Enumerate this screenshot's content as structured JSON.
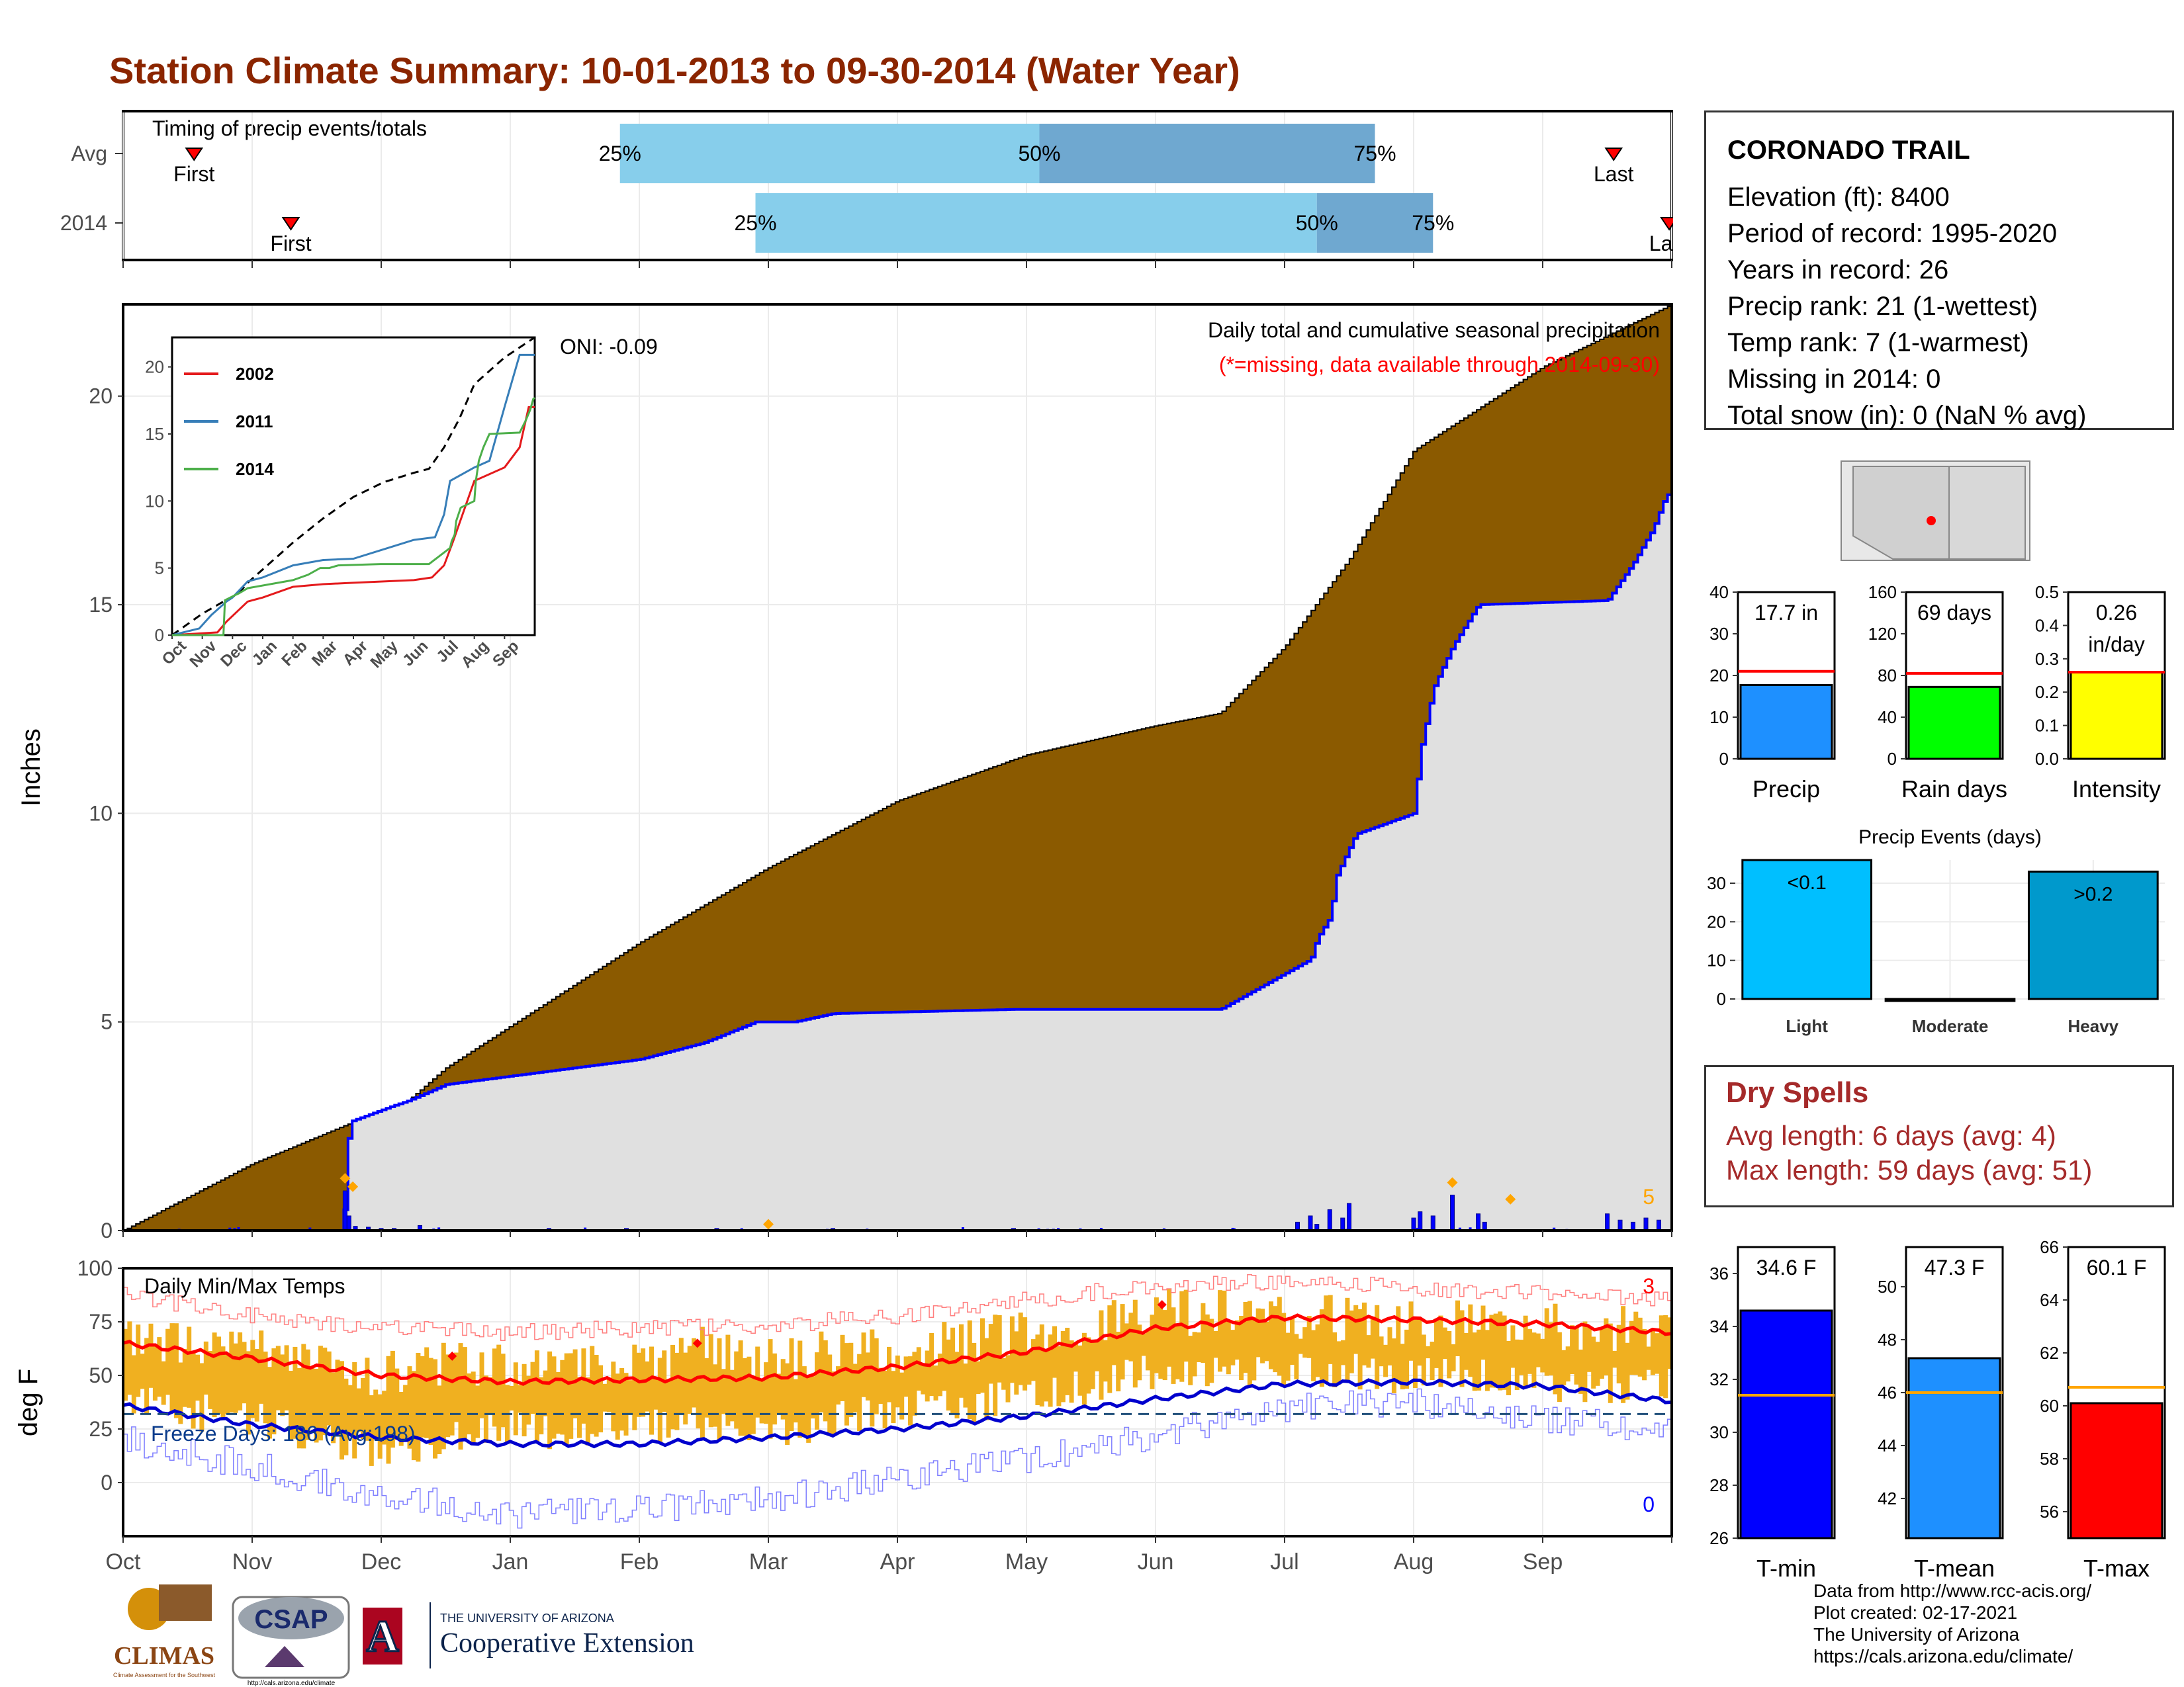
{
  "title": "Station Climate Summary: 10-01-2013 to 09-30-2014 (Water Year)",
  "timing_panel": {
    "label": "Timing of precip events/totals",
    "rows": [
      {
        "name": "Avg",
        "first_label": "First",
        "last_label": "Last",
        "p25_label": "25%",
        "p50_label": "50%",
        "p75_label": "75%",
        "first_month": 0.55,
        "p25_month": 3.85,
        "p50_month": 7.1,
        "p75_month": 9.7,
        "last_month": 11.55
      },
      {
        "name": "2014",
        "first_label": "First",
        "last_label": "Last",
        "p25_label": "25%",
        "p50_label": "50%",
        "p75_label": "75%",
        "first_month": 1.3,
        "p25_month": 4.9,
        "p50_month": 9.25,
        "p75_month": 10.15,
        "last_month": 11.98
      }
    ]
  },
  "station_info": {
    "name": "CORONADO TRAIL",
    "lines": [
      "Elevation (ft): 8400",
      "Period of record: 1995-2020",
      "Years in record: 26",
      "Precip rank: 21 (1-wettest)",
      "Temp rank: 7 (1-warmest)",
      "Missing in 2014: 0",
      "Total snow (in): 0 (NaN % avg)"
    ]
  },
  "dry_spells": {
    "title": "Dry Spells",
    "avg_line": "Avg length: 6 days (avg: 4)",
    "max_line": "Max length: 59 days (avg: 51)"
  },
  "footer": {
    "lines": [
      "Data from http://www.rcc-acis.org/",
      "Plot created: 02-17-2021",
      "The University of Arizona",
      "https://cals.arizona.edu/climate/"
    ]
  },
  "logos": {
    "climas": "CLIMAS",
    "climas_sub": "Climate Assessment for the Southwest",
    "csap": "CSAP",
    "csap_url": "http://cals.arizona.edu/climate",
    "ua_letter": "A",
    "ua_small": "THE UNIVERSITY OF ARIZONA",
    "ua_big": "Cooperative Extension"
  },
  "colors": {
    "title": "#8b2500",
    "avg_cum": "#8b5a00",
    "obs_area": "#e0e0e0",
    "obs_line": "#0000ff",
    "iqr_light": "#87ceeb",
    "iqr_dark": "#6fa8d0",
    "temp_range": "#f0b020",
    "tmax_avg": "#ff0000",
    "tmin_avg": "#0000cd",
    "dry": "#a52a2a"
  },
  "chart_data": [
    {
      "id": "main-precip",
      "type": "area",
      "ylabel": "Inches",
      "annotation_oni": "ONI: -0.09",
      "subtitle": "Daily total and cumulative seasonal precipitation",
      "missing_note": "(*=missing, data available through 2014-09-30)",
      "count_label": "5",
      "ylim": [
        0,
        22.2
      ],
      "yticks": [
        0,
        5,
        10,
        15,
        20
      ],
      "x_months": [
        "Oct",
        "Nov",
        "Dec",
        "Jan",
        "Feb",
        "Mar",
        "Apr",
        "May",
        "Jun",
        "Jul",
        "Aug",
        "Sep"
      ],
      "avg_cumulative": {
        "x_month": [
          0,
          1,
          1.7,
          2.2,
          2.5,
          3,
          4,
          5,
          6,
          7,
          8,
          8.5,
          9,
          9.5,
          10,
          11,
          12
        ],
        "y": [
          0,
          1.6,
          2.5,
          3.1,
          3.9,
          4.9,
          6.9,
          8.7,
          10.3,
          11.4,
          12.1,
          12.4,
          14.0,
          16.1,
          18.7,
          20.7,
          22.2
        ]
      },
      "observed_cumulative": {
        "x_month": [
          0,
          1.7,
          1.75,
          2.1,
          2.2,
          2.5,
          4,
          4.5,
          4.9,
          5.2,
          5.5,
          6.9,
          7.2,
          8,
          8.5,
          9.2,
          9.25,
          9.35,
          9.4,
          9.55,
          10.0,
          10.05,
          10.15,
          10.3,
          10.5,
          11.5,
          11.7,
          11.85,
          11.95,
          12
        ],
        "y": [
          0,
          0,
          2.6,
          3.0,
          3.1,
          3.5,
          4.1,
          4.5,
          5.0,
          5.0,
          5.2,
          5.3,
          5.3,
          5.3,
          5.3,
          6.5,
          7.0,
          7.5,
          8.5,
          9.5,
          10.0,
          11.5,
          13.0,
          14.0,
          15.0,
          15.1,
          16.0,
          16.8,
          17.6,
          17.7
        ]
      },
      "daily_bars": {
        "x_month": [
          1.72,
          1.75,
          1.8,
          1.9,
          2.0,
          2.1,
          2.3,
          3.3,
          3.9,
          4.6,
          5.5,
          6.9,
          9.1,
          9.2,
          9.25,
          9.35,
          9.45,
          9.5,
          10.0,
          10.05,
          10.15,
          10.3,
          10.5,
          10.55,
          11.5,
          11.6,
          11.7,
          11.8,
          11.9
        ],
        "y": [
          0.95,
          0.35,
          0.1,
          0.08,
          0.05,
          0.05,
          0.12,
          0.05,
          0.05,
          0.05,
          0.05,
          0.05,
          0.2,
          0.35,
          0.15,
          0.5,
          0.3,
          0.65,
          0.3,
          0.45,
          0.35,
          0.85,
          0.4,
          0.2,
          0.4,
          0.25,
          0.2,
          0.3,
          0.25
        ]
      },
      "highlight_points": {
        "x_month": [
          1.72,
          1.78,
          5.0,
          10.3,
          10.75
        ],
        "y": [
          1.25,
          1.05,
          0.15,
          1.15,
          0.75
        ]
      }
    },
    {
      "id": "inset-cumulative",
      "type": "line",
      "x_months": [
        "Oct",
        "Nov",
        "Dec",
        "Jan",
        "Feb",
        "Mar",
        "Apr",
        "May",
        "Jun",
        "Jul",
        "Aug",
        "Sep"
      ],
      "ylim": [
        0,
        22.2
      ],
      "yticks": [
        0,
        5,
        10,
        15,
        20
      ],
      "series": [
        {
          "name": "2002",
          "color": "#e41a1c",
          "x_month": [
            0,
            1.5,
            1.8,
            2.5,
            3,
            4,
            5,
            6,
            7,
            8,
            8.6,
            9,
            9.3,
            10,
            11,
            11.5,
            11.8,
            12
          ],
          "y": [
            0,
            0.2,
            1.0,
            2.5,
            2.8,
            3.6,
            3.8,
            3.9,
            4.0,
            4.1,
            4.3,
            5.2,
            7.0,
            11.5,
            12.5,
            14.0,
            17.0,
            17.0
          ]
        },
        {
          "name": "2011",
          "color": "#377eb8",
          "x_month": [
            0,
            0.9,
            1.3,
            1.8,
            2.0,
            2.5,
            3,
            4,
            5,
            6,
            7,
            8,
            8.7,
            9,
            9.2,
            10,
            10.5,
            11,
            11.5,
            12
          ],
          "y": [
            0,
            0.5,
            1.5,
            2.5,
            2.8,
            4.0,
            4.3,
            5.2,
            5.6,
            5.7,
            6.4,
            7.1,
            7.3,
            9.0,
            11.5,
            12.5,
            13.0,
            17.0,
            20.9,
            20.9
          ]
        },
        {
          "name": "2014",
          "color": "#4daf4a",
          "x_month": [
            0,
            1.7,
            1.75,
            2.1,
            2.2,
            2.5,
            4,
            4.5,
            4.9,
            5.2,
            5.5,
            6.9,
            7.2,
            8,
            8.5,
            9.2,
            9.25,
            9.35,
            9.4,
            9.55,
            10.0,
            10.05,
            10.15,
            10.3,
            10.5,
            11.5,
            11.7,
            11.85,
            11.95,
            12
          ],
          "y": [
            0,
            0,
            2.6,
            3.0,
            3.1,
            3.5,
            4.1,
            4.5,
            5.0,
            5.0,
            5.2,
            5.3,
            5.3,
            5.3,
            5.3,
            6.5,
            7.0,
            7.5,
            8.5,
            9.5,
            10.0,
            11.5,
            13.0,
            14.0,
            15.0,
            15.1,
            16.0,
            16.8,
            17.6,
            17.7
          ]
        }
      ],
      "average": {
        "x_month": [
          0,
          1,
          1.7,
          2.2,
          2.5,
          3,
          4,
          5,
          6,
          7,
          8,
          8.5,
          9,
          9.5,
          10,
          11,
          12
        ],
        "y": [
          0,
          1.6,
          2.5,
          3.1,
          3.9,
          4.9,
          6.9,
          8.7,
          10.3,
          11.4,
          12.1,
          12.4,
          14.0,
          16.1,
          18.7,
          20.7,
          22.2
        ]
      }
    },
    {
      "id": "temps",
      "type": "area",
      "ylabel": "deg F",
      "title": "Daily Min/Max Temps",
      "freeze_label": "Freeze Days: 186 (Avg:198)",
      "count_hot": "3",
      "count_cold": "0",
      "ylim": [
        -25,
        100
      ],
      "yticks": [
        0,
        25,
        50,
        75,
        100
      ],
      "freeze_line": 32,
      "x_months": [
        "Oct",
        "Nov",
        "Dec",
        "Jan",
        "Feb",
        "Mar",
        "Apr",
        "May",
        "Jun",
        "Jul",
        "Aug",
        "Sep"
      ],
      "avg_tmax": {
        "x_month": [
          0,
          1,
          2,
          3,
          4,
          5,
          6,
          7,
          8,
          9,
          10,
          11,
          12
        ],
        "y": [
          65,
          58,
          50,
          47,
          48,
          49,
          54,
          61,
          72,
          77,
          76,
          74,
          70
        ]
      },
      "avg_tmin": {
        "x_month": [
          0,
          1,
          2,
          3,
          4,
          5,
          6,
          7,
          8,
          9,
          10,
          11,
          12
        ],
        "y": [
          36,
          27,
          21,
          18,
          18,
          21,
          25,
          31,
          39,
          46,
          47,
          45,
          38
        ]
      },
      "record_max": {
        "x_month": [
          0,
          1,
          2,
          3,
          4,
          5,
          6,
          7,
          8,
          9,
          10,
          11,
          12
        ],
        "y": [
          88,
          78,
          72,
          70,
          72,
          73,
          78,
          85,
          92,
          94,
          91,
          88,
          86
        ]
      },
      "record_min": {
        "x_month": [
          0,
          1,
          2,
          3,
          4,
          5,
          6,
          7,
          8,
          9,
          10,
          11,
          12
        ],
        "y": [
          20,
          8,
          -5,
          -15,
          -12,
          -8,
          2,
          10,
          22,
          35,
          38,
          30,
          25
        ]
      },
      "obs_tmax": {
        "x_month": [
          0,
          0.5,
          1,
          1.5,
          2,
          2.5,
          3,
          3.5,
          4,
          4.5,
          5,
          5.5,
          6,
          6.5,
          7,
          7.5,
          8,
          8.5,
          9,
          9.5,
          10,
          10.5,
          11,
          11.5,
          12
        ],
        "y": [
          70,
          66,
          62,
          55,
          50,
          56,
          54,
          52,
          55,
          62,
          58,
          60,
          62,
          66,
          70,
          74,
          80,
          79,
          78,
          76,
          74,
          75,
          73,
          72,
          70
        ]
      },
      "obs_tmin": {
        "x_month": [
          0,
          0.5,
          1,
          1.5,
          2,
          2.5,
          3,
          3.5,
          4,
          4.5,
          5,
          5.5,
          6,
          6.5,
          7,
          7.5,
          8,
          8.5,
          9,
          9.5,
          10,
          10.5,
          11,
          11.5,
          12
        ],
        "y": [
          38,
          33,
          30,
          22,
          15,
          20,
          25,
          24,
          26,
          28,
          22,
          30,
          33,
          36,
          40,
          45,
          52,
          52,
          53,
          52,
          50,
          50,
          47,
          45,
          44
        ]
      },
      "record_markers": {
        "x_month": [
          2.55,
          4.45,
          8.05
        ],
        "y": [
          59,
          65,
          83
        ]
      }
    },
    {
      "id": "precip-total",
      "type": "bar",
      "value_label": "17.7 in",
      "xlabel": "Precip",
      "value": 17.7,
      "avg": 21,
      "ylim": [
        0,
        40
      ],
      "yticks": [
        0,
        10,
        20,
        30,
        40
      ],
      "color": "#1e90ff"
    },
    {
      "id": "rain-days",
      "type": "bar",
      "value_label": "69 days",
      "xlabel": "Rain days",
      "value": 69,
      "avg": 82,
      "ylim": [
        0,
        160
      ],
      "yticks": [
        0,
        40,
        80,
        120,
        160
      ],
      "color": "#00ff00"
    },
    {
      "id": "intensity",
      "type": "bar",
      "value_label_1": "0.26",
      "value_label_2": "in/day",
      "xlabel": "Intensity",
      "value": 0.26,
      "avg": 0.26,
      "ylim": [
        0,
        0.5
      ],
      "yticks": [
        0.0,
        0.1,
        0.2,
        0.3,
        0.4,
        0.5
      ],
      "color": "#ffff00"
    },
    {
      "id": "precip-events",
      "type": "bar",
      "title": "Precip Events (days)",
      "categories": [
        "Light",
        "Moderate",
        "Heavy"
      ],
      "values": [
        36,
        0,
        33
      ],
      "bar_labels": [
        "<0.1",
        "",
        ">0.2"
      ],
      "ylim": [
        0,
        36
      ],
      "yticks": [
        0,
        10,
        20,
        30
      ]
    },
    {
      "id": "tmin-bar",
      "type": "bar",
      "value_label": "34.6 F",
      "xlabel": "T-min",
      "value": 34.6,
      "avg": 31.4,
      "ylim": [
        26,
        37
      ],
      "yticks": [
        26,
        28,
        30,
        32,
        34,
        36
      ],
      "color": "#0000ff"
    },
    {
      "id": "tmean-bar",
      "type": "bar",
      "value_label": "47.3 F",
      "xlabel": "T-mean",
      "value": 47.3,
      "avg": 46.0,
      "ylim": [
        40.5,
        51.5
      ],
      "yticks": [
        42,
        44,
        46,
        48,
        50
      ],
      "color": "#1e90ff"
    },
    {
      "id": "tmax-bar",
      "type": "bar",
      "value_label": "60.1 F",
      "xlabel": "T-max",
      "value": 60.1,
      "avg": 60.7,
      "ylim": [
        55.0,
        66.0
      ],
      "yticks": [
        56,
        58,
        60,
        62,
        64,
        66
      ],
      "color": "#ff0000"
    }
  ]
}
